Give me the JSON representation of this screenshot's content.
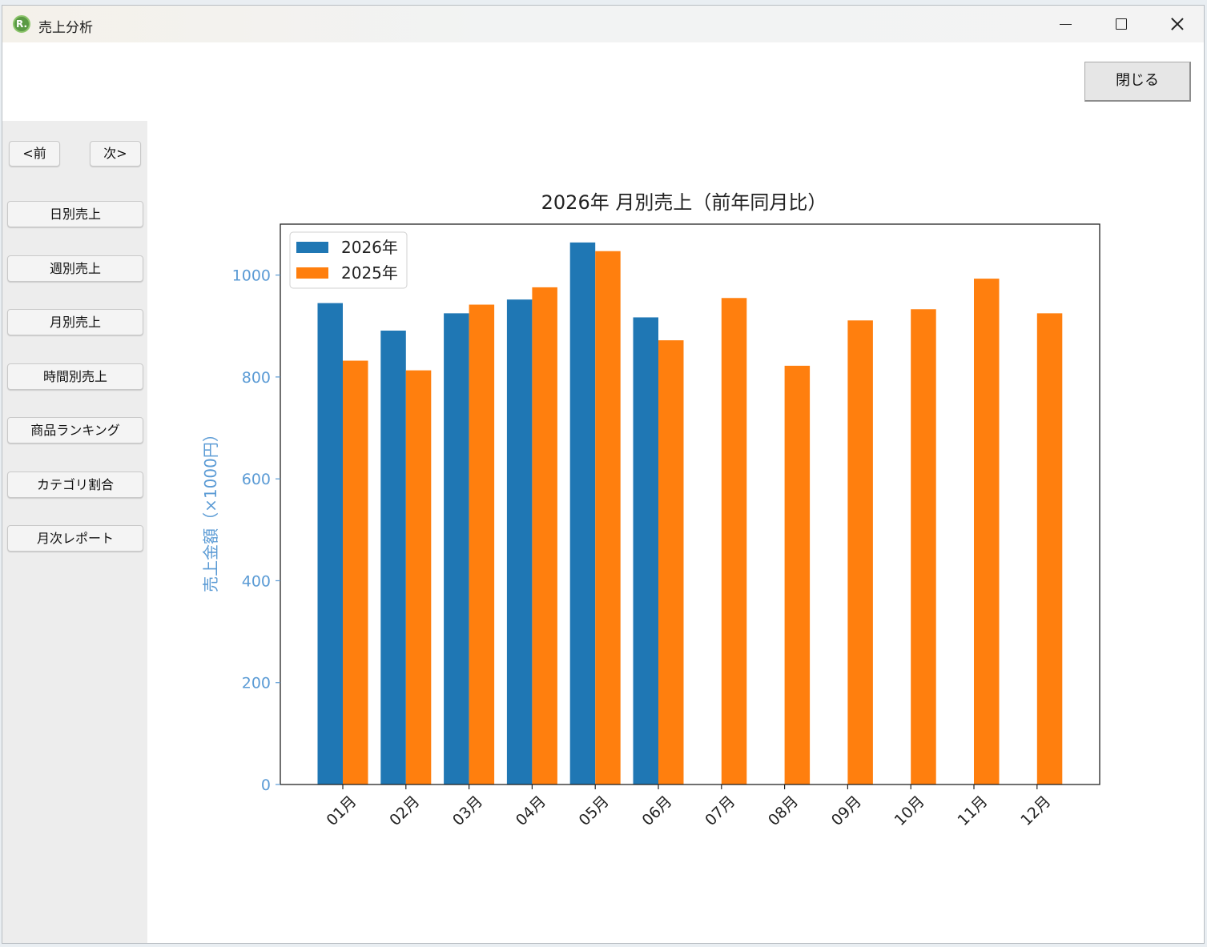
{
  "window": {
    "title": "売上分析",
    "icon_letter": "R."
  },
  "toolbar": {
    "close_label": "閉じる"
  },
  "sidebar": {
    "prev_label": "<前",
    "next_label": "次>",
    "items": [
      {
        "label": "日別売上"
      },
      {
        "label": "週別売上"
      },
      {
        "label": "月別売上"
      },
      {
        "label": "時間別売上"
      },
      {
        "label": "商品ランキング"
      },
      {
        "label": "カテゴリ割合"
      },
      {
        "label": "月次レポート"
      }
    ]
  },
  "chart_data": {
    "type": "bar",
    "title": "2026年 月別売上（前年同月比）",
    "xlabel": "",
    "ylabel": "売上金額（×1000円）",
    "categories": [
      "01月",
      "02月",
      "03月",
      "04月",
      "05月",
      "06月",
      "07月",
      "08月",
      "09月",
      "10月",
      "11月",
      "12月"
    ],
    "series": [
      {
        "name": "2026年",
        "color": "#1f77b4",
        "values": [
          945,
          891,
          925,
          952,
          1064,
          917,
          null,
          null,
          null,
          null,
          null,
          null
        ]
      },
      {
        "name": "2025年",
        "color": "#ff7f0e",
        "values": [
          832,
          813,
          942,
          976,
          1047,
          872,
          955,
          822,
          911,
          933,
          993,
          925
        ]
      }
    ],
    "ylim": [
      0,
      1100
    ],
    "yticks": [
      0,
      200,
      400,
      600,
      800,
      1000
    ],
    "ytick_labels": [
      "0",
      "200",
      "400",
      "600",
      "800",
      "1000"
    ],
    "ylabel_color": "#5b9bd5",
    "legend_position": "top-left",
    "grid": false
  }
}
